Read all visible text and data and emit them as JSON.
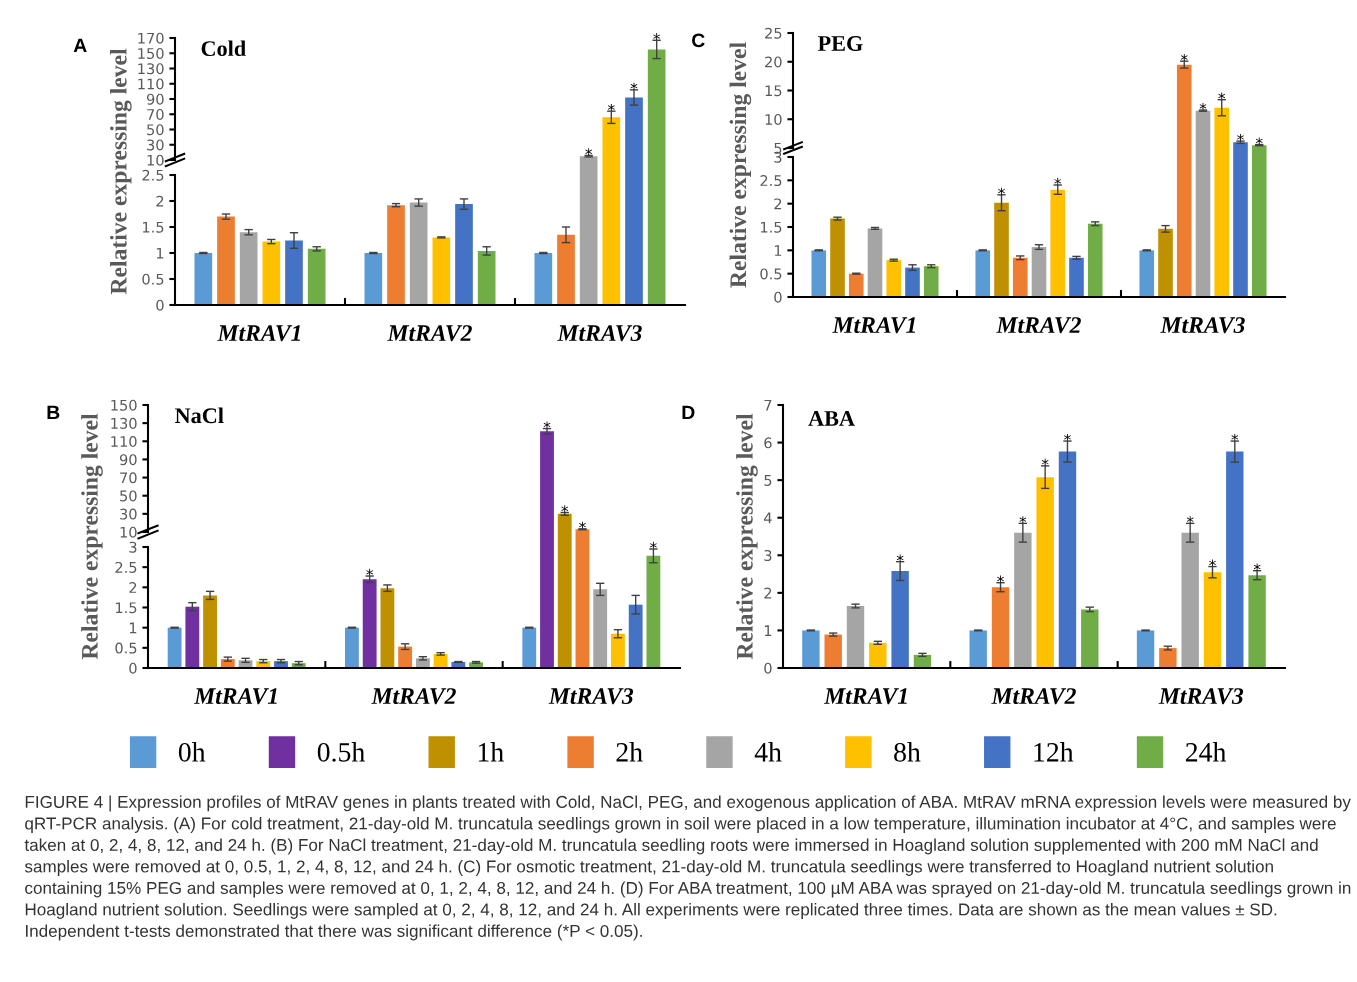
{
  "chart_data": [
    {
      "type": "bar",
      "title": "Cold",
      "categories": [
        "MtRAV1",
        "MtRAV2",
        "MtRAV3"
      ],
      "tick_labels": "y",
      "ylim": [
        10,
        170
      ],
      "yticks": [
        10,
        30,
        50,
        70,
        90,
        110,
        130,
        150,
        170
      ],
      "grid": false,
      "annotations": [
        "A"
      ],
      "series": [
        {
          "color": "#5b9bd5",
          "values": [
            null,
            null,
            null
          ]
        },
        {
          "color": "#ed7d31",
          "values": [
            null,
            null,
            null
          ]
        },
        {
          "color": "#a5a5a5",
          "values": [
            null,
            null,
            15
          ],
          "errors": [
            null,
            null,
            1
          ],
          "value_labels": [
            null,
            null,
            "*"
          ]
        },
        {
          "color": "#ffc000",
          "values": [
            null,
            null,
            66
          ],
          "errors": [
            null,
            null,
            8
          ],
          "value_labels": [
            null,
            null,
            "*"
          ]
        },
        {
          "color": "#4472c4",
          "values": [
            null,
            null,
            92
          ],
          "errors": [
            null,
            null,
            10
          ],
          "value_labels": [
            null,
            null,
            "*"
          ]
        },
        {
          "color": "#70ad47",
          "values": [
            null,
            null,
            155
          ],
          "errors": [
            null,
            null,
            12
          ],
          "value_labels": [
            null,
            null,
            "*"
          ]
        }
      ]
    },
    {
      "type": "bar",
      "ylabel": "Relative expressing level",
      "categories": [
        "MtRAV1",
        "MtRAV2",
        "MtRAV3"
      ],
      "ylim": [
        0,
        2.5
      ],
      "yticks": [
        0,
        0.5,
        1,
        1.5,
        2,
        2.5
      ],
      "grid": false,
      "legend": "bottom",
      "series": [
        {
          "name": "0h",
          "color": "#5b9bd5",
          "values": [
            1,
            1,
            1
          ],
          "errors": [
            0.01,
            0.01,
            0.01
          ]
        },
        {
          "name": "2h",
          "color": "#ed7d31",
          "values": [
            1.7,
            1.92,
            1.35
          ],
          "errors": [
            0.05,
            0.03,
            0.15
          ]
        },
        {
          "name": "4h",
          "color": "#a5a5a5",
          "values": [
            1.4,
            1.97,
            null
          ],
          "errors": [
            0.05,
            0.07,
            null
          ]
        },
        {
          "name": "8h",
          "color": "#ffc000",
          "values": [
            1.22,
            1.3,
            null
          ],
          "errors": [
            0.04,
            0.01,
            null
          ]
        },
        {
          "name": "12h",
          "color": "#4472c4",
          "values": [
            1.24,
            1.94,
            null
          ],
          "errors": [
            0.15,
            0.1,
            null
          ]
        },
        {
          "name": "24h",
          "color": "#70ad47",
          "values": [
            1.08,
            1.04,
            null
          ],
          "errors": [
            0.04,
            0.08,
            null
          ]
        }
      ]
    },
    {
      "type": "bar",
      "title": "PEG",
      "categories": [
        "MtRAV1",
        "MtRAV2",
        "MtRAV3"
      ],
      "tick_labels": "y",
      "ylim": [
        5,
        25
      ],
      "yticks": [
        5,
        10,
        15,
        20,
        25
      ],
      "grid": false,
      "annotations": [
        "C"
      ],
      "series": [
        {
          "color": "#5b9bd5",
          "values": [
            null,
            null,
            null
          ]
        },
        {
          "color": "#bf9000",
          "values": [
            null,
            null,
            null
          ]
        },
        {
          "color": "#ed7d31",
          "values": [
            null,
            null,
            19.5
          ],
          "errors": [
            null,
            null,
            0.6
          ],
          "value_labels": [
            null,
            null,
            "*"
          ]
        },
        {
          "color": "#a5a5a5",
          "values": [
            null,
            null,
            11.5
          ],
          "errors": [
            null,
            null,
            0.1
          ],
          "value_labels": [
            null,
            null,
            "*"
          ]
        },
        {
          "color": "#ffc000",
          "values": [
            null,
            null,
            12
          ],
          "errors": [
            null,
            null,
            1.4
          ],
          "value_labels": [
            null,
            null,
            "*"
          ]
        },
        {
          "color": "#4472c4",
          "values": [
            null,
            null,
            6
          ],
          "errors": [
            null,
            null,
            0.2
          ],
          "value_labels": [
            null,
            null,
            "*"
          ]
        },
        {
          "color": "#70ad47",
          "values": [
            null,
            null,
            5.5
          ],
          "errors": [
            null,
            null,
            0.1
          ],
          "value_labels": [
            null,
            null,
            "*"
          ]
        }
      ]
    },
    {
      "type": "bar",
      "ylabel": "Relative expressing level",
      "categories": [
        "MtRAV1",
        "MtRAV2",
        "MtRAV3"
      ],
      "ylim": [
        0,
        3
      ],
      "yticks": [
        0,
        0.5,
        1,
        1.5,
        2,
        2.5,
        3
      ],
      "grid": false,
      "legend": "bottom",
      "series": [
        {
          "name": "0h",
          "color": "#5b9bd5",
          "values": [
            1,
            1,
            1
          ],
          "errors": [
            0.01,
            0.01,
            0.01
          ]
        },
        {
          "name": "1h",
          "color": "#bf9000",
          "values": [
            1.68,
            2.02,
            1.46
          ],
          "errors": [
            0.03,
            0.17,
            0.07
          ],
          "value_labels": [
            null,
            "*",
            null
          ]
        },
        {
          "name": "2h",
          "color": "#ed7d31",
          "values": [
            0.5,
            0.84,
            null
          ],
          "errors": [
            0.01,
            0.04,
            null
          ]
        },
        {
          "name": "4h",
          "color": "#a5a5a5",
          "values": [
            1.47,
            1.07,
            null
          ],
          "errors": [
            0.02,
            0.05,
            null
          ]
        },
        {
          "name": "8h",
          "color": "#ffc000",
          "values": [
            0.79,
            2.3,
            null
          ],
          "errors": [
            0.02,
            0.1,
            null
          ],
          "value_labels": [
            null,
            "*",
            null
          ]
        },
        {
          "name": "12h",
          "color": "#4472c4",
          "values": [
            0.63,
            0.84,
            null
          ],
          "errors": [
            0.06,
            0.03,
            null
          ]
        },
        {
          "name": "24h",
          "color": "#70ad47",
          "values": [
            0.66,
            1.57,
            null
          ],
          "errors": [
            0.03,
            0.04,
            null
          ]
        }
      ]
    },
    {
      "type": "bar",
      "title": "NaCl",
      "categories": [
        "MtRAV1",
        "MtRAV2",
        "MtRAV3"
      ],
      "tick_labels": "y",
      "ylim": [
        10,
        150
      ],
      "yticks": [
        10,
        30,
        50,
        70,
        90,
        110,
        130,
        150
      ],
      "grid": false,
      "annotations": [
        "B"
      ],
      "series": [
        {
          "color": "#5b9bd5",
          "values": [
            null,
            null,
            null
          ]
        },
        {
          "color": "#7030a0",
          "values": [
            null,
            null,
            121
          ],
          "errors": [
            null,
            null,
            3
          ],
          "value_labels": [
            null,
            null,
            "*"
          ]
        },
        {
          "color": "#bf9000",
          "values": [
            null,
            null,
            30
          ],
          "errors": [
            null,
            null,
            1.5
          ],
          "value_labels": [
            null,
            null,
            "*"
          ]
        },
        {
          "color": "#ed7d31",
          "values": [
            null,
            null,
            13
          ],
          "errors": [
            null,
            null,
            0.5
          ],
          "value_labels": [
            null,
            null,
            "*"
          ]
        },
        {
          "color": "#a5a5a5",
          "values": [
            null,
            null,
            null
          ]
        },
        {
          "color": "#ffc000",
          "values": [
            null,
            null,
            null
          ]
        },
        {
          "color": "#0070c0",
          "values": [
            null,
            null,
            null
          ]
        },
        {
          "color": "#70ad47",
          "values": [
            null,
            null,
            null
          ]
        }
      ]
    },
    {
      "type": "bar",
      "ylabel": "Relative expressing level",
      "categories": [
        "MtRAV1",
        "MtRAV2",
        "MtRAV3"
      ],
      "ylim": [
        0,
        3
      ],
      "yticks": [
        0,
        0.5,
        1,
        1.5,
        2,
        2.5,
        3
      ],
      "grid": false,
      "legend": "bottom",
      "series": [
        {
          "name": "0h",
          "color": "#5b9bd5",
          "values": [
            1,
            1,
            1
          ],
          "errors": [
            0.01,
            0.01,
            0.01
          ]
        },
        {
          "name": "0.5h",
          "color": "#7030a0",
          "values": [
            1.52,
            2.2,
            null
          ],
          "errors": [
            0.1,
            0.08,
            null
          ],
          "value_labels": [
            null,
            "*",
            null
          ]
        },
        {
          "name": "1h",
          "color": "#bf9000",
          "values": [
            1.8,
            1.98,
            null
          ],
          "errors": [
            0.1,
            0.08,
            null
          ]
        },
        {
          "name": "2h",
          "color": "#ed7d31",
          "values": [
            0.22,
            0.53,
            null
          ],
          "errors": [
            0.05,
            0.07,
            null
          ]
        },
        {
          "name": "4h",
          "color": "#a5a5a5",
          "values": [
            0.19,
            0.24,
            1.95
          ],
          "errors": [
            0.05,
            0.04,
            0.15
          ]
        },
        {
          "name": "8h",
          "color": "#ffc000",
          "values": [
            0.17,
            0.35,
            0.85
          ],
          "errors": [
            0.04,
            0.03,
            0.1
          ]
        },
        {
          "name": "12h",
          "color": "#4472c4",
          "values": [
            0.17,
            0.15,
            1.57
          ],
          "errors": [
            0.04,
            0.01,
            0.23
          ]
        },
        {
          "name": "24h",
          "color": "#70ad47",
          "values": [
            0.12,
            0.14,
            2.78
          ],
          "errors": [
            0.04,
            0.02,
            0.17
          ],
          "value_labels": [
            null,
            null,
            "*"
          ]
        }
      ]
    },
    {
      "type": "bar",
      "title": "ABA",
      "ylabel": "Relative expressing level",
      "categories": [
        "MtRAV1",
        "MtRAV2",
        "MtRAV3"
      ],
      "ylim": [
        0,
        7
      ],
      "yticks": [
        0,
        1,
        2,
        3,
        4,
        5,
        6,
        7
      ],
      "grid": false,
      "legend": "bottom",
      "annotations": [
        "D",
        "FIGURE 4 | Expression profiles of MtRAV genes in plants treated with Cold, NaCl, PEG, and exogenous application of ABA. MtRAV mRNA expression levels were measured by qRT-PCR analysis. (A) For cold treatment, 21-day-old M. truncatula seedlings grown in soil were placed in a low temperature, illumination incubator at 4°C, and samples were taken at 0, 2, 4, 8, 12, and 24 h. (B) For NaCl treatment, 21-day-old M. truncatula seedling roots were immersed in Hoagland solution supplemented with 200 mM NaCl and samples were removed at 0, 0.5, 1, 2, 4, 8, 12, and 24 h. (C) For osmotic treatment, 21-day-old M. truncatula seedlings were transferred to Hoagland nutrient solution containing 15% PEG and samples were removed at 0, 1, 2, 4, 8, 12, and 24 h. (D) For ABA treatment, 100 µM ABA was sprayed on 21-day-old M. truncatula seedlings grown in Hoagland nutrient solution. Seedlings were sampled at 0, 2, 4, 8, 12, and 24 h. All experiments were replicated three times. Data are shown as the mean values ± SD. Independent t-tests demonstrated that there was significant difference (*P < 0.05)."
      ],
      "series": [
        {
          "name": "0h",
          "color": "#5b9bd5",
          "values": [
            1,
            1,
            1
          ],
          "errors": [
            0.01,
            0.01,
            0.01
          ]
        },
        {
          "name": "2h",
          "color": "#ed7d31",
          "values": [
            0.89,
            2.15,
            0.53
          ],
          "errors": [
            0.04,
            0.12,
            0.05
          ],
          "value_labels": [
            null,
            "*",
            null
          ]
        },
        {
          "name": "4h",
          "color": "#a5a5a5",
          "values": [
            1.65,
            3.6,
            3.6
          ],
          "errors": [
            0.05,
            0.25,
            0.25
          ],
          "value_labels": [
            null,
            "*",
            "*"
          ]
        },
        {
          "name": "8h",
          "color": "#ffc000",
          "values": [
            0.67,
            5.08,
            2.55
          ],
          "errors": [
            0.04,
            0.3,
            0.15
          ],
          "value_labels": [
            null,
            "*",
            "*"
          ]
        },
        {
          "name": "12h",
          "color": "#4472c4",
          "values": [
            2.58,
            5.76,
            5.76
          ],
          "errors": [
            0.25,
            0.28,
            0.28
          ],
          "value_labels": [
            "*",
            "*",
            "*"
          ]
        },
        {
          "name": "24h",
          "color": "#70ad47",
          "values": [
            0.35,
            1.56,
            2.47
          ],
          "errors": [
            0.04,
            0.06,
            0.12
          ],
          "value_labels": [
            null,
            null,
            "*"
          ]
        }
      ]
    }
  ]
}
